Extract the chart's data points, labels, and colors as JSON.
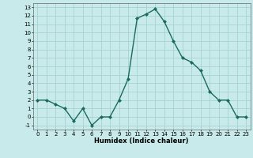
{
  "x": [
    0,
    1,
    2,
    3,
    4,
    5,
    6,
    7,
    8,
    9,
    10,
    11,
    12,
    13,
    14,
    15,
    16,
    17,
    18,
    19,
    20,
    21,
    22,
    23
  ],
  "y": [
    2,
    2,
    1.5,
    1,
    -0.5,
    1,
    -1,
    0,
    0,
    2,
    4.5,
    11.7,
    12.2,
    12.8,
    11.3,
    9,
    7,
    6.5,
    5.5,
    3,
    2,
    2,
    0,
    0
  ],
  "line_color": "#1a6b5e",
  "marker": "D",
  "marker_size": 2.0,
  "bg_color": "#c8eaea",
  "grid_color": "#9ecece",
  "xlabel": "Humidex (Indice chaleur)",
  "xlabel_fontsize": 6.0,
  "ylim": [
    -1.5,
    13.5
  ],
  "xlim": [
    -0.5,
    23.5
  ],
  "yticks": [
    -1,
    0,
    1,
    2,
    3,
    4,
    5,
    6,
    7,
    8,
    9,
    10,
    11,
    12,
    13
  ],
  "xticks": [
    0,
    1,
    2,
    3,
    4,
    5,
    6,
    7,
    8,
    9,
    10,
    11,
    12,
    13,
    14,
    15,
    16,
    17,
    18,
    19,
    20,
    21,
    22,
    23
  ],
  "tick_fontsize": 5.0,
  "linewidth": 1.0
}
